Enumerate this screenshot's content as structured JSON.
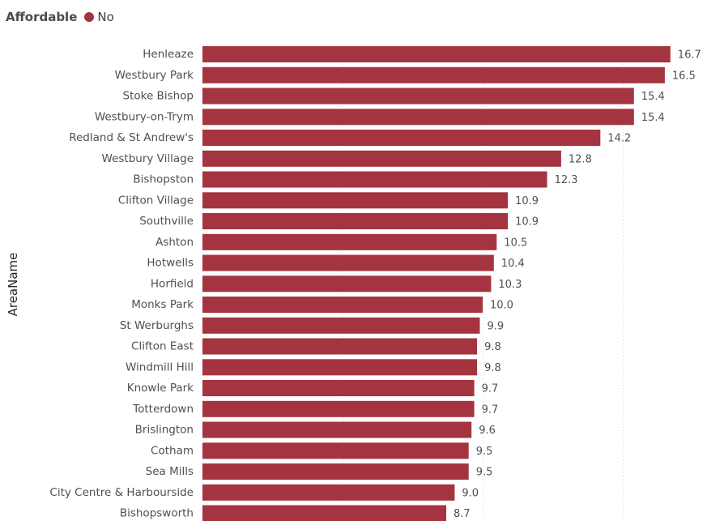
{
  "legend": {
    "title": "Affordable",
    "items": [
      {
        "label": "No",
        "color": "#A4343F"
      }
    ]
  },
  "chart_data": {
    "type": "bar",
    "orientation": "horizontal",
    "ylabel": "AreaName",
    "xlabel": "",
    "xlim": [
      0,
      18
    ],
    "grid": true,
    "legend_position": "top-left",
    "bar_color": "#A4343F",
    "categories": [
      "Henleaze",
      "Westbury Park",
      "Stoke Bishop",
      "Westbury-on-Trym",
      "Redland & St Andrew's",
      "Westbury Village",
      "Bishopston",
      "Clifton Village",
      "Southville",
      "Ashton",
      "Hotwells",
      "Horfield",
      "Monks Park",
      "St Werburghs",
      "Clifton East",
      "Windmill Hill",
      "Knowle Park",
      "Totterdown",
      "Brislington",
      "Cotham",
      "Sea Mills",
      "City Centre & Harbourside",
      "Bishopsworth"
    ],
    "values": [
      16.7,
      16.5,
      15.4,
      15.4,
      14.2,
      12.8,
      12.3,
      10.9,
      10.9,
      10.5,
      10.4,
      10.3,
      10.0,
      9.9,
      9.8,
      9.8,
      9.7,
      9.7,
      9.6,
      9.5,
      9.5,
      9.0,
      8.7
    ],
    "value_labels": [
      "16.7",
      "16.5",
      "15.4",
      "15.4",
      "14.2",
      "12.8",
      "12.3",
      "10.9",
      "10.9",
      "10.5",
      "10.4",
      "10.3",
      "10.0",
      "9.9",
      "9.8",
      "9.8",
      "9.7",
      "9.7",
      "9.6",
      "9.5",
      "9.5",
      "9.0",
      "8.7"
    ]
  }
}
